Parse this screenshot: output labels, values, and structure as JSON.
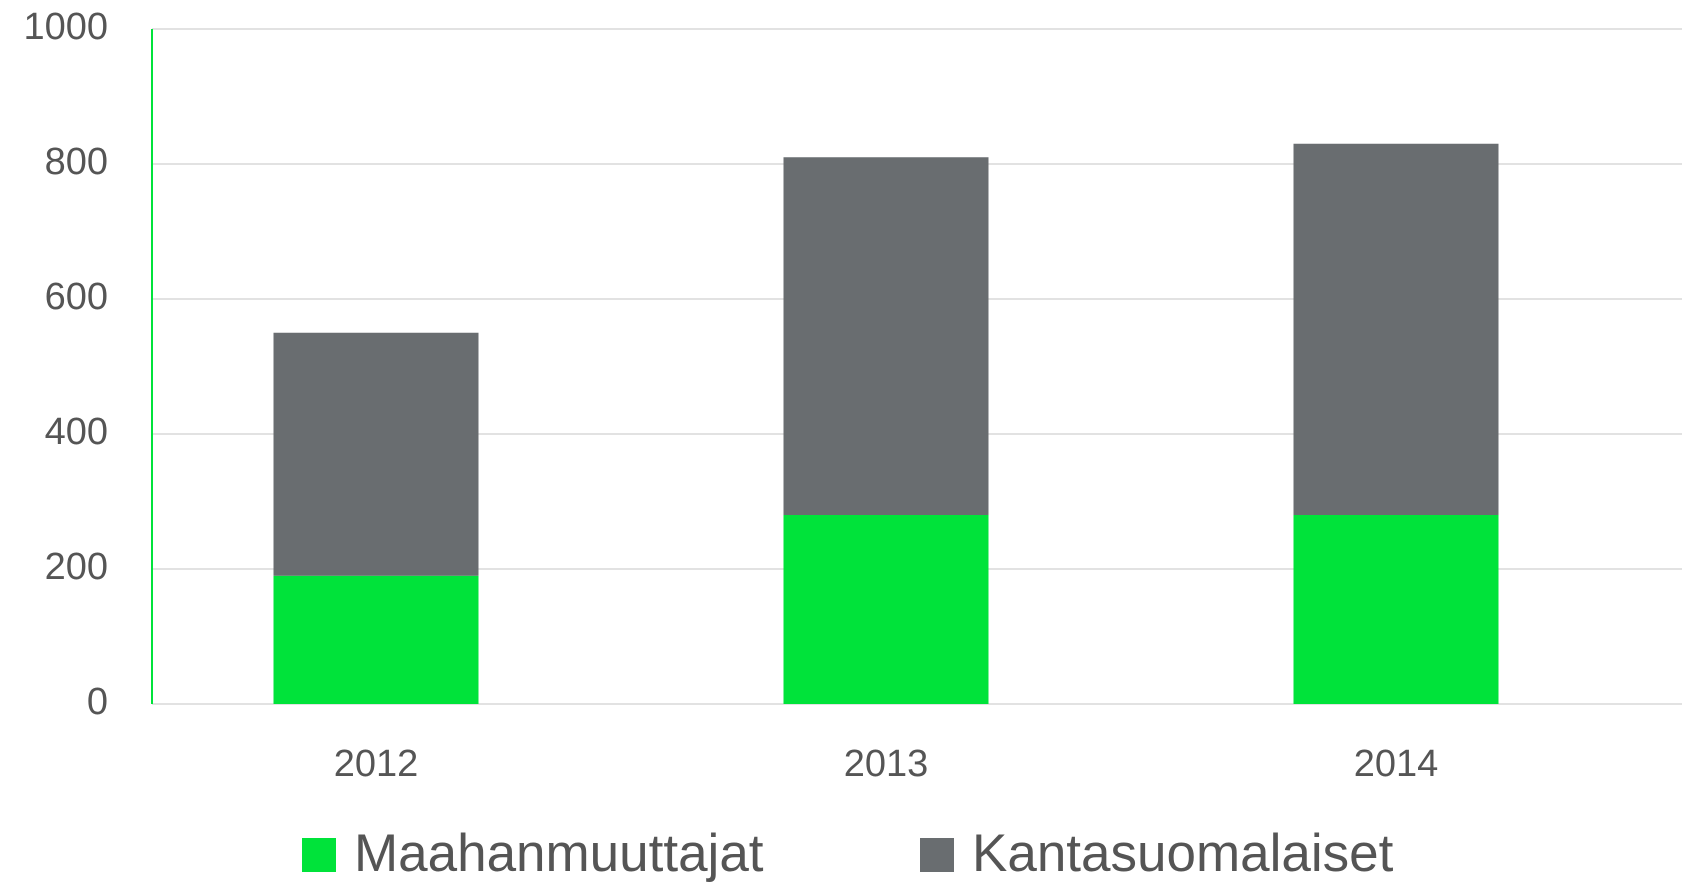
{
  "chart_data": {
    "type": "bar",
    "stacked": true,
    "categories": [
      "2012",
      "2013",
      "2014"
    ],
    "series": [
      {
        "name": "Maahanmuuttajat",
        "color": "#00e33a",
        "values": [
          190,
          280,
          280
        ]
      },
      {
        "name": "Kantasuomalaiset",
        "color": "#696d70",
        "values": [
          360,
          530,
          550
        ]
      }
    ],
    "ylim": [
      0,
      1000
    ],
    "yticks": [
      0,
      200,
      400,
      600,
      800,
      1000
    ],
    "grid": true,
    "legend": "bottom"
  }
}
